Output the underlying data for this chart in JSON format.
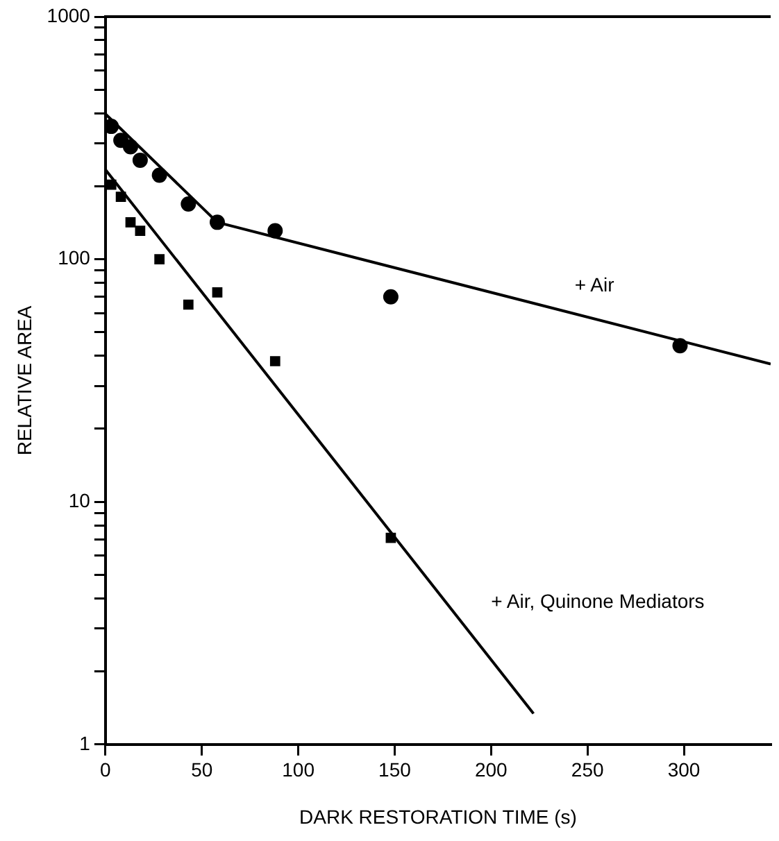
{
  "chart_data": {
    "type": "scatter",
    "xlabel": "DARK RESTORATION TIME (s)",
    "ylabel": "RELATIVE AREA",
    "log": "y",
    "grid": false,
    "legend": false,
    "xlim": [
      0,
      345
    ],
    "xticks": [
      0,
      50,
      100,
      150,
      200,
      250,
      300
    ],
    "ylim": [
      1,
      1000
    ],
    "yticks": [
      1,
      {
        "value": 2,
        "label": null
      },
      {
        "value": 3,
        "label": null
      },
      {
        "value": 4,
        "label": null
      },
      {
        "value": 5,
        "label": null
      },
      {
        "value": 6,
        "label": null
      },
      {
        "value": 7,
        "label": null
      },
      {
        "value": 8,
        "label": null
      },
      {
        "value": 9,
        "label": null
      },
      10,
      {
        "value": 20,
        "label": null
      },
      {
        "value": 30,
        "label": null
      },
      {
        "value": 40,
        "label": null
      },
      {
        "value": 50,
        "label": null
      },
      {
        "value": 60,
        "label": null
      },
      {
        "value": 70,
        "label": null
      },
      {
        "value": 80,
        "label": null
      },
      {
        "value": 90,
        "label": null
      },
      100,
      {
        "value": 200,
        "label": null
      },
      {
        "value": 300,
        "label": null
      },
      {
        "value": 400,
        "label": null
      },
      {
        "value": 500,
        "label": null
      },
      {
        "value": 600,
        "label": null
      },
      {
        "value": 700,
        "label": null
      },
      {
        "value": 800,
        "label": null
      },
      {
        "value": 900,
        "label": null
      },
      1000
    ],
    "series": [
      {
        "marker": "circle",
        "color": "#000000",
        "x": [
          3,
          8,
          13,
          18,
          28,
          43,
          58,
          88,
          148,
          298
        ],
        "values": [
          353,
          309,
          291,
          256,
          222,
          169,
          142,
          131,
          70,
          44
        ]
      },
      {
        "marker": "square",
        "color": "#000000",
        "x": [
          3,
          8,
          13,
          18,
          28,
          43,
          58,
          88,
          148
        ],
        "values": [
          203,
          181,
          142,
          131,
          100,
          65,
          73,
          38,
          7.1
        ]
      },
      {
        "type": "line",
        "marker": "none",
        "color": "#000000",
        "x": [
          0,
          58,
          345
        ],
        "values": [
          397,
          142,
          37
        ]
      },
      {
        "type": "line",
        "marker": "none",
        "color": "#000000",
        "x": [
          0,
          222
        ],
        "values": [
          234,
          1.34
        ]
      }
    ],
    "annotations": [
      "+ Air",
      "+ Air, Quinone Mediators"
    ]
  }
}
